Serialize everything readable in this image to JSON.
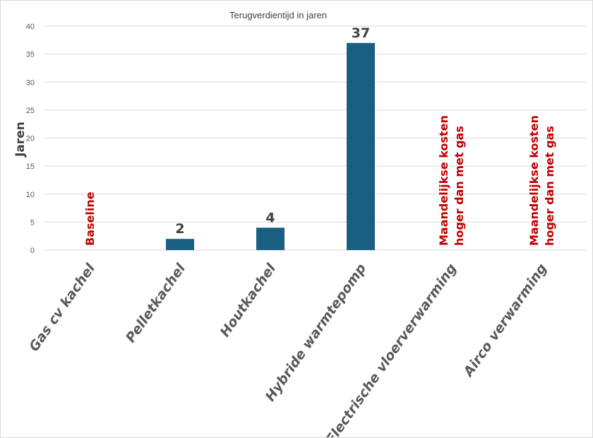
{
  "chart_data": {
    "type": "bar",
    "title": "Terugverdientijd in jaren",
    "ylabel": "Jaren",
    "xlabel": "",
    "ylim": [
      0,
      40
    ],
    "yticks": [
      0,
      5,
      10,
      15,
      20,
      25,
      30,
      35,
      40
    ],
    "grid": true,
    "categories": [
      "Gas cv kachel",
      "Pelletkachel",
      "Houtkachel",
      "Hybride warmtepomp",
      "Electrische vloerverwarming",
      "Airco verwarming"
    ],
    "values": [
      0,
      2,
      4,
      37,
      null,
      null
    ],
    "data_labels": [
      "",
      "2",
      "4",
      "37",
      "",
      ""
    ],
    "annotations": [
      {
        "category": "Gas cv kachel",
        "lines": [
          "Baseline"
        ]
      },
      {
        "category": "Electrische vloerverwarming",
        "lines": [
          "Maandelijkse kosten",
          "hoger dan met gas"
        ]
      },
      {
        "category": "Airco verwarming",
        "lines": [
          "Maandelijkse kosten",
          "hoger dan met gas"
        ]
      }
    ],
    "colors": {
      "bar": "#1a5f82",
      "annotation": "#c00000"
    }
  }
}
